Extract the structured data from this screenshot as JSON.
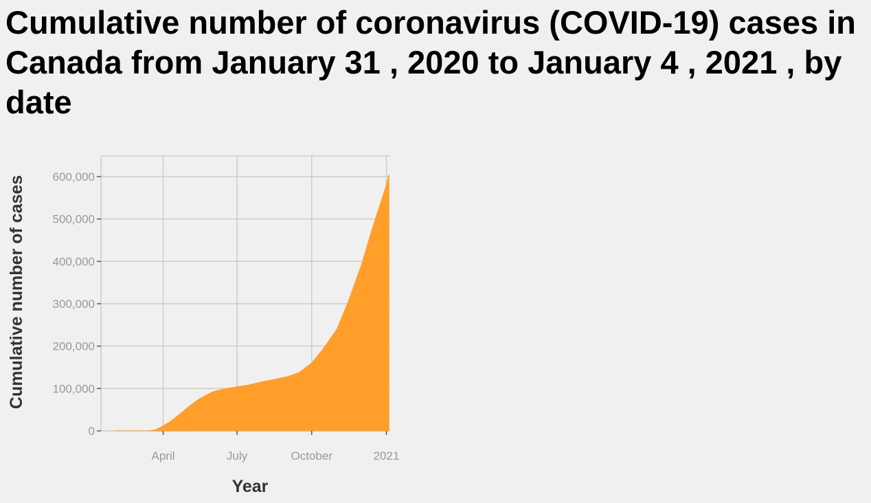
{
  "chart_data": {
    "type": "area",
    "title": "Cumulative number of coronavirus (COVID-19) cases in Canada from January 31 , 2020 to January 4 , 2021 , by date",
    "xlabel": "Year",
    "ylabel": "Cumulative number of cases",
    "x_ticks": [
      {
        "date": "2020-04-01",
        "label": "April"
      },
      {
        "date": "2020-07-01",
        "label": "July"
      },
      {
        "date": "2020-10-01",
        "label": "October"
      },
      {
        "date": "2021-01-01",
        "label": "2021"
      }
    ],
    "y_ticks": [
      0,
      100000,
      200000,
      300000,
      400000,
      500000,
      600000
    ],
    "y_tick_labels": [
      "0",
      "100,000",
      "200,000",
      "300,000",
      "400,000",
      "500,000",
      "600,000"
    ],
    "xlim": [
      "2020-01-01",
      "2021-01-04"
    ],
    "ylim": [
      0,
      600000
    ],
    "grid": true,
    "color": "#ff9f2a",
    "series": [
      {
        "points": [
          [
            "2020-01-31",
            0
          ],
          [
            "2020-03-01",
            30
          ],
          [
            "2020-03-15",
            300
          ],
          [
            "2020-03-22",
            2000
          ],
          [
            "2020-04-01",
            12000
          ],
          [
            "2020-04-10",
            22000
          ],
          [
            "2020-04-20",
            37000
          ],
          [
            "2020-05-01",
            55000
          ],
          [
            "2020-05-15",
            75000
          ],
          [
            "2020-06-01",
            92000
          ],
          [
            "2020-06-15",
            99000
          ],
          [
            "2020-07-01",
            104000
          ],
          [
            "2020-07-15",
            108000
          ],
          [
            "2020-08-01",
            116000
          ],
          [
            "2020-08-15",
            121000
          ],
          [
            "2020-09-01",
            128000
          ],
          [
            "2020-09-15",
            137000
          ],
          [
            "2020-10-01",
            160000
          ],
          [
            "2020-10-15",
            193000
          ],
          [
            "2020-11-01",
            240000
          ],
          [
            "2020-11-15",
            305000
          ],
          [
            "2020-12-01",
            390000
          ],
          [
            "2020-12-15",
            480000
          ],
          [
            "2021-01-01",
            580000
          ],
          [
            "2021-01-04",
            605000
          ]
        ]
      }
    ]
  }
}
